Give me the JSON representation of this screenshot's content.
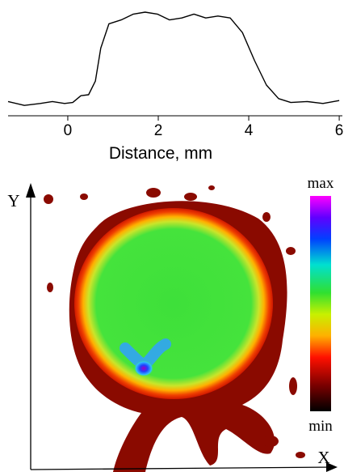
{
  "chart_data": [
    {
      "type": "line",
      "x": [
        -1.32,
        -0.96,
        -0.61,
        -0.34,
        -0.07,
        0.11,
        0.29,
        0.46,
        0.61,
        0.73,
        0.91,
        1.18,
        1.45,
        1.71,
        1.98,
        2.25,
        2.52,
        2.79,
        3.05,
        3.32,
        3.59,
        3.86,
        4.13,
        4.39,
        4.66,
        4.93,
        5.29,
        5.64,
        6.0
      ],
      "values": [
        0.08,
        0.04,
        0.06,
        0.08,
        0.06,
        0.07,
        0.14,
        0.15,
        0.29,
        0.63,
        0.88,
        0.92,
        0.98,
        1.0,
        0.98,
        0.92,
        0.94,
        0.98,
        0.94,
        0.96,
        0.94,
        0.79,
        0.5,
        0.25,
        0.11,
        0.07,
        0.08,
        0.06,
        0.09
      ],
      "color": "#000000",
      "xlim": [
        -1.32,
        6.07
      ],
      "ylim": [
        0,
        1
      ],
      "xticks": [
        0,
        2,
        4,
        6
      ],
      "xlabel": "Distance, mm"
    },
    {
      "type": "heatmap",
      "colorbar_top": "max",
      "colorbar_bottom": "min",
      "xlabel": "X",
      "ylabel": "Y"
    }
  ]
}
